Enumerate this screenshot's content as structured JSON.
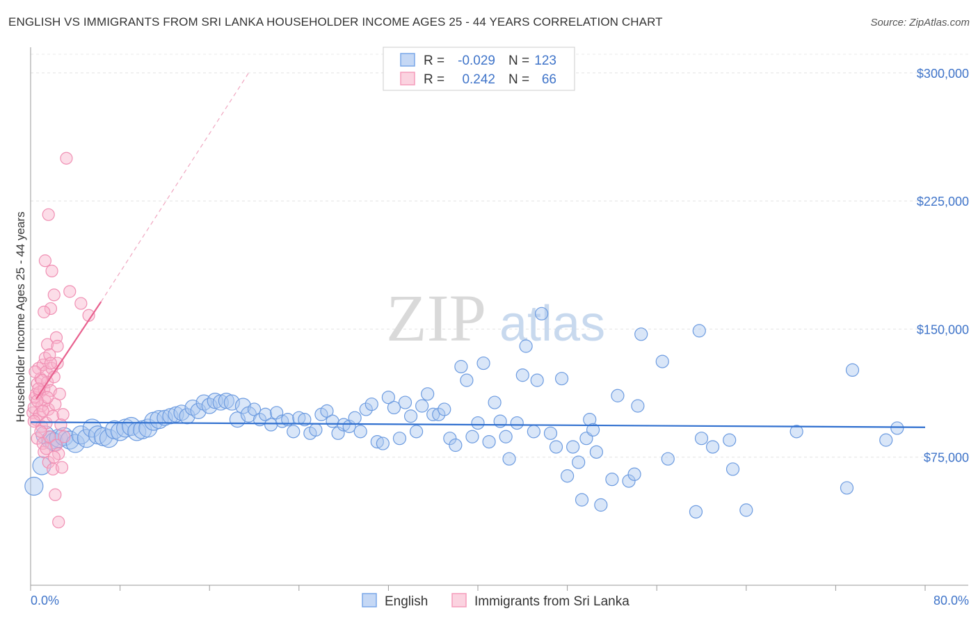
{
  "title": "ENGLISH VS IMMIGRANTS FROM SRI LANKA HOUSEHOLDER INCOME AGES 25 - 44 YEARS CORRELATION CHART",
  "source": "Source: ZipAtlas.com",
  "watermark": {
    "zip": "ZIP",
    "atlas": "atlas"
  },
  "chart_data": {
    "type": "scatter",
    "xlabel": "",
    "ylabel": "Householder Income Ages 25 - 44 years",
    "xlim": [
      0,
      80
    ],
    "ylim": [
      0,
      315000
    ],
    "x_tick_labels": [
      "0.0%",
      "80.0%"
    ],
    "y_ticks": [
      75000,
      150000,
      225000,
      300000
    ],
    "y_tick_labels": [
      "$75,000",
      "$150,000",
      "$225,000",
      "$300,000"
    ],
    "legend": [
      {
        "name": "English",
        "r_label": "R =",
        "r": "-0.029",
        "n_label": "N =",
        "n": "123",
        "color": "#7aa7e8",
        "line": "#2f6fcf"
      },
      {
        "name": "Immigrants from Sri Lanka",
        "r_label": "R =",
        "r": "0.242",
        "n_label": "N =",
        "n": "66",
        "color": "#f59cbb",
        "line": "#e8608e"
      }
    ],
    "series": [
      {
        "name": "English",
        "trend": {
          "x": [
            0,
            80
          ],
          "y": [
            95500,
            92500
          ]
        },
        "points": [
          [
            0.3,
            58000
          ],
          [
            1,
            70000
          ],
          [
            1.3,
            88000
          ],
          [
            1.8,
            85000
          ],
          [
            2.1,
            84000
          ],
          [
            2.5,
            86000
          ],
          [
            3,
            87000
          ],
          [
            3.5,
            85000
          ],
          [
            4,
            83000
          ],
          [
            4.5,
            88000
          ],
          [
            5,
            86000
          ],
          [
            5.5,
            92000
          ],
          [
            6,
            88000
          ],
          [
            6.5,
            87000
          ],
          [
            7,
            86000
          ],
          [
            7.5,
            91000
          ],
          [
            8,
            90000
          ],
          [
            8.5,
            92000
          ],
          [
            9,
            93000
          ],
          [
            9.5,
            90000
          ],
          [
            10,
            91000
          ],
          [
            10.5,
            92000
          ],
          [
            11,
            96000
          ],
          [
            11.5,
            97000
          ],
          [
            12,
            98000
          ],
          [
            12.5,
            99000
          ],
          [
            13,
            100000
          ],
          [
            13.5,
            101000
          ],
          [
            14,
            99000
          ],
          [
            14.5,
            104000
          ],
          [
            15,
            102000
          ],
          [
            15.5,
            107000
          ],
          [
            16,
            105000
          ],
          [
            16.5,
            108000
          ],
          [
            17,
            107000
          ],
          [
            17.5,
            108000
          ],
          [
            18,
            107000
          ],
          [
            18.5,
            97000
          ],
          [
            19,
            105000
          ],
          [
            19.5,
            100000
          ],
          [
            20,
            103000
          ],
          [
            20.5,
            97000
          ],
          [
            21,
            100000
          ],
          [
            21.5,
            94000
          ],
          [
            22,
            101000
          ],
          [
            22.5,
            96000
          ],
          [
            23,
            97000
          ],
          [
            23.5,
            90000
          ],
          [
            24,
            98000
          ],
          [
            24.5,
            97000
          ],
          [
            25,
            89000
          ],
          [
            25.5,
            91000
          ],
          [
            26,
            100000
          ],
          [
            26.5,
            102000
          ],
          [
            27,
            96000
          ],
          [
            27.5,
            89000
          ],
          [
            28,
            94000
          ],
          [
            28.5,
            93000
          ],
          [
            29,
            98000
          ],
          [
            29.5,
            90000
          ],
          [
            30,
            103000
          ],
          [
            30.5,
            106000
          ],
          [
            31,
            84000
          ],
          [
            31.5,
            83000
          ],
          [
            32,
            110000
          ],
          [
            32.5,
            104000
          ],
          [
            33,
            86000
          ],
          [
            33.5,
            107000
          ],
          [
            34,
            99000
          ],
          [
            34.5,
            90000
          ],
          [
            35,
            105000
          ],
          [
            35.5,
            112000
          ],
          [
            36,
            100000
          ],
          [
            36.5,
            100000
          ],
          [
            37,
            103000
          ],
          [
            37.5,
            86000
          ],
          [
            38,
            82000
          ],
          [
            38.5,
            128000
          ],
          [
            39,
            120000
          ],
          [
            39.5,
            87000
          ],
          [
            40,
            95000
          ],
          [
            40.5,
            130000
          ],
          [
            41,
            84000
          ],
          [
            41.5,
            107000
          ],
          [
            42,
            96000
          ],
          [
            42.5,
            87000
          ],
          [
            42.8,
            74000
          ],
          [
            43.5,
            95000
          ],
          [
            44,
            123000
          ],
          [
            44.3,
            140000
          ],
          [
            45,
            90000
          ],
          [
            45.3,
            120000
          ],
          [
            45.7,
            159000
          ],
          [
            46.5,
            89000
          ],
          [
            47,
            81000
          ],
          [
            47.5,
            121000
          ],
          [
            48,
            64000
          ],
          [
            48.5,
            81000
          ],
          [
            49,
            72000
          ],
          [
            49.3,
            50000
          ],
          [
            49.7,
            86000
          ],
          [
            50,
            97000
          ],
          [
            50.3,
            91000
          ],
          [
            50.6,
            78000
          ],
          [
            51,
            47000
          ],
          [
            52,
            62000
          ],
          [
            52.5,
            111000
          ],
          [
            53.5,
            61000
          ],
          [
            54,
            65000
          ],
          [
            54.3,
            105000
          ],
          [
            54.6,
            147000
          ],
          [
            56.5,
            131000
          ],
          [
            57,
            74000
          ],
          [
            59.5,
            43000
          ],
          [
            59.8,
            149000
          ],
          [
            60,
            86000
          ],
          [
            61,
            81000
          ],
          [
            62.5,
            85000
          ],
          [
            62.8,
            68000
          ],
          [
            64,
            44000
          ],
          [
            68.5,
            90000
          ],
          [
            73,
            57000
          ],
          [
            73.5,
            126000
          ],
          [
            76.5,
            85000
          ],
          [
            77.5,
            92000
          ]
        ]
      },
      {
        "name": "Immigrants from Sri Lanka",
        "trend": {
          "x": [
            0.5,
            6.3
          ],
          "y": [
            109000,
            166000
          ]
        },
        "trend_ext": {
          "x": [
            6.3,
            19.5
          ],
          "y": [
            166000,
            300000
          ]
        },
        "points": [
          [
            0.2,
            101000
          ],
          [
            0.3,
            104000
          ],
          [
            0.4,
            110000
          ],
          [
            0.5,
            112000
          ],
          [
            0.5,
            97000
          ],
          [
            0.6,
            118000
          ],
          [
            0.6,
            86000
          ],
          [
            0.7,
            127000
          ],
          [
            0.8,
            113000
          ],
          [
            0.8,
            100000
          ],
          [
            0.9,
            121000
          ],
          [
            1,
            105000
          ],
          [
            1,
            93000
          ],
          [
            1.1,
            129000
          ],
          [
            1.1,
            83000
          ],
          [
            1.2,
            115000
          ],
          [
            1.2,
            78000
          ],
          [
            1.3,
            133000
          ],
          [
            1.3,
            108000
          ],
          [
            1.4,
            125000
          ],
          [
            1.4,
            95000
          ],
          [
            1.5,
            141000
          ],
          [
            1.5,
            119000
          ],
          [
            1.6,
            103000
          ],
          [
            1.6,
            72000
          ],
          [
            1.7,
            135000
          ],
          [
            1.7,
            87000
          ],
          [
            1.8,
            162000
          ],
          [
            1.8,
            114000
          ],
          [
            1.9,
            127000
          ],
          [
            2,
            99000
          ],
          [
            2,
            68000
          ],
          [
            2.1,
            170000
          ],
          [
            2.1,
            122000
          ],
          [
            2.2,
            106000
          ],
          [
            2.3,
            145000
          ],
          [
            2.3,
            82000
          ],
          [
            2.4,
            130000
          ],
          [
            2.5,
            77000
          ],
          [
            2.6,
            112000
          ],
          [
            2.7,
            94000
          ],
          [
            2.8,
            69000
          ],
          [
            2.9,
            100000
          ],
          [
            3,
            87000
          ],
          [
            3.2,
            250000
          ],
          [
            3.5,
            172000
          ],
          [
            4.5,
            165000
          ],
          [
            5.2,
            158000
          ],
          [
            1.3,
            190000
          ],
          [
            1.6,
            217000
          ],
          [
            1.9,
            184000
          ],
          [
            2.2,
            53000
          ],
          [
            2.5,
            37000
          ],
          [
            0.9,
            90000
          ],
          [
            1,
            120000
          ],
          [
            1.2,
            160000
          ],
          [
            1.5,
            110000
          ],
          [
            1.8,
            130000
          ],
          [
            0.7,
            115000
          ],
          [
            2.1,
            75000
          ],
          [
            0.4,
            125000
          ],
          [
            0.6,
            108000
          ],
          [
            1.1,
            102000
          ],
          [
            1.4,
            80000
          ],
          [
            2.4,
            140000
          ],
          [
            0.3,
            96000
          ]
        ]
      }
    ]
  }
}
